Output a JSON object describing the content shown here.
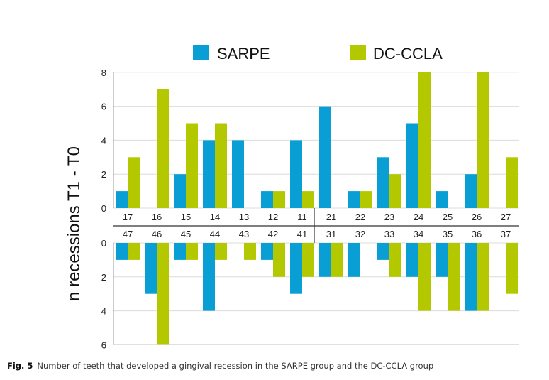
{
  "chart_data": {
    "type": "bar",
    "title": "",
    "ylabel": "n recessions T1 - T0",
    "xlabel": "",
    "legend": {
      "position": "top-center",
      "entries": [
        {
          "name": "SARPE",
          "color": "#0a9fd4"
        },
        {
          "name": "DC-CCLA",
          "color": "#b4c800"
        }
      ]
    },
    "grid": true,
    "panels": [
      {
        "name": "upper",
        "direction": "up",
        "ylim": [
          0,
          8
        ],
        "yticks": [
          0,
          2,
          4,
          6,
          8
        ],
        "categories": [
          "17",
          "16",
          "15",
          "14",
          "13",
          "12",
          "11",
          "21",
          "22",
          "23",
          "24",
          "25",
          "26",
          "27"
        ],
        "series": [
          {
            "name": "SARPE",
            "values": [
              1,
              0,
              2,
              4,
              4,
              1,
              4,
              6,
              1,
              3,
              5,
              1,
              2,
              0
            ]
          },
          {
            "name": "DC-CCLA",
            "values": [
              3,
              7,
              5,
              5,
              0,
              1,
              1,
              0,
              1,
              2,
              8,
              0,
              8,
              3
            ]
          }
        ]
      },
      {
        "name": "lower",
        "direction": "down",
        "ylim": [
          0,
          6
        ],
        "yticks": [
          0,
          2,
          4,
          6
        ],
        "categories": [
          "47",
          "46",
          "45",
          "44",
          "43",
          "42",
          "41",
          "31",
          "32",
          "33",
          "34",
          "35",
          "36",
          "37"
        ],
        "series": [
          {
            "name": "SARPE",
            "values": [
              1,
              3,
              1,
              4,
              0,
              1,
              3,
              2,
              2,
              1,
              2,
              2,
              4,
              0
            ]
          },
          {
            "name": "DC-CCLA",
            "values": [
              1,
              6,
              1,
              1,
              1,
              2,
              2,
              2,
              0,
              2,
              4,
              4,
              4,
              3
            ]
          }
        ]
      }
    ]
  },
  "caption": {
    "label": "Fig. 5",
    "text": "Number of teeth that developed a gingival recession in the SARPE group and the DC-CCLA group"
  }
}
